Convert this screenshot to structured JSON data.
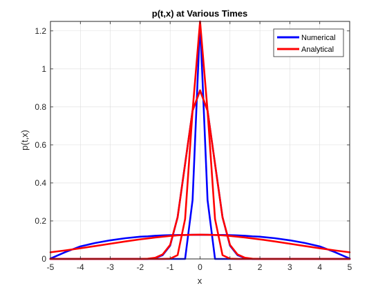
{
  "chart_data": {
    "type": "line",
    "title": "p(t,x) at Various Times",
    "xlabel": "x",
    "ylabel": "p(t,x)",
    "xlim": [
      -5,
      5
    ],
    "ylim": [
      0,
      1.25
    ],
    "xticks": [
      -5,
      -4,
      -3,
      -2,
      -1,
      0,
      1,
      2,
      3,
      4,
      5
    ],
    "xtick_labels": [
      "-5",
      "-4",
      "-3",
      "-2",
      "-1",
      "0",
      "1",
      "2",
      "3",
      "4",
      "5"
    ],
    "yticks": [
      0,
      0.2,
      0.4,
      0.6,
      0.8,
      1,
      1.2
    ],
    "ytick_labels": [
      "0",
      "0.2",
      "0.4",
      "0.6",
      "0.8",
      "1",
      "1.2"
    ],
    "grid": true,
    "legend_position": "top-right",
    "x": [
      -5,
      -4.5,
      -4,
      -3.5,
      -3,
      -2.5,
      -2,
      -1.75,
      -1.5,
      -1.25,
      -1,
      -0.75,
      -0.5,
      -0.25,
      0,
      0.25,
      0.5,
      0.75,
      1,
      1.25,
      1.5,
      1.75,
      2,
      2.5,
      3,
      3.5,
      4,
      4.5,
      5
    ],
    "series": [
      {
        "name": "Numerical",
        "color": "#0000FF",
        "curves": [
          [
            0.0,
            0.0,
            0.0,
            0.0,
            0.0,
            0.0,
            0.0,
            0.0,
            0.0,
            0.0,
            0.0,
            0.0,
            0.0,
            0.31,
            1.25,
            0.31,
            0.0,
            0.0,
            0.0,
            0.0,
            0.0,
            0.0,
            0.0,
            0.0,
            0.0,
            0.0,
            0.0,
            0.0,
            0.0
          ],
          [
            0.0,
            0.0,
            0.0,
            0.0,
            0.0,
            0.0,
            0.0,
            0.0,
            0.005,
            0.02,
            0.07,
            0.22,
            0.5,
            0.78,
            0.887,
            0.78,
            0.5,
            0.22,
            0.07,
            0.02,
            0.005,
            0.0,
            0.0,
            0.0,
            0.0,
            0.0,
            0.0,
            0.0,
            0.0
          ],
          [
            0.002,
            0.036,
            0.066,
            0.084,
            0.098,
            0.109,
            0.117,
            0.119,
            0.122,
            0.124,
            0.125,
            0.126,
            0.126,
            0.127,
            0.127,
            0.127,
            0.126,
            0.126,
            0.125,
            0.124,
            0.122,
            0.119,
            0.117,
            0.109,
            0.098,
            0.084,
            0.066,
            0.036,
            0.002
          ]
        ]
      },
      {
        "name": "Analytical",
        "color": "#FF0000",
        "curves": [
          [
            0.0,
            0.0,
            0.0,
            0.0,
            0.0,
            0.0,
            0.0,
            0.0,
            0.0,
            0.0,
            0.001,
            0.02,
            0.21,
            0.78,
            1.25,
            0.78,
            0.21,
            0.02,
            0.001,
            0.0,
            0.0,
            0.0,
            0.0,
            0.0,
            0.0,
            0.0,
            0.0,
            0.0,
            0.0
          ],
          [
            0.0,
            0.0,
            0.0,
            0.0,
            0.0,
            0.0,
            0.0,
            0.001,
            0.006,
            0.024,
            0.074,
            0.219,
            0.5,
            0.78,
            0.887,
            0.78,
            0.5,
            0.219,
            0.074,
            0.024,
            0.006,
            0.001,
            0.0,
            0.0,
            0.0,
            0.0,
            0.0,
            0.0,
            0.0
          ],
          [
            0.035,
            0.045,
            0.056,
            0.068,
            0.08,
            0.092,
            0.103,
            0.108,
            0.113,
            0.117,
            0.121,
            0.124,
            0.126,
            0.127,
            0.128,
            0.127,
            0.126,
            0.124,
            0.121,
            0.117,
            0.113,
            0.108,
            0.103,
            0.092,
            0.08,
            0.068,
            0.056,
            0.045,
            0.035
          ]
        ]
      }
    ]
  }
}
